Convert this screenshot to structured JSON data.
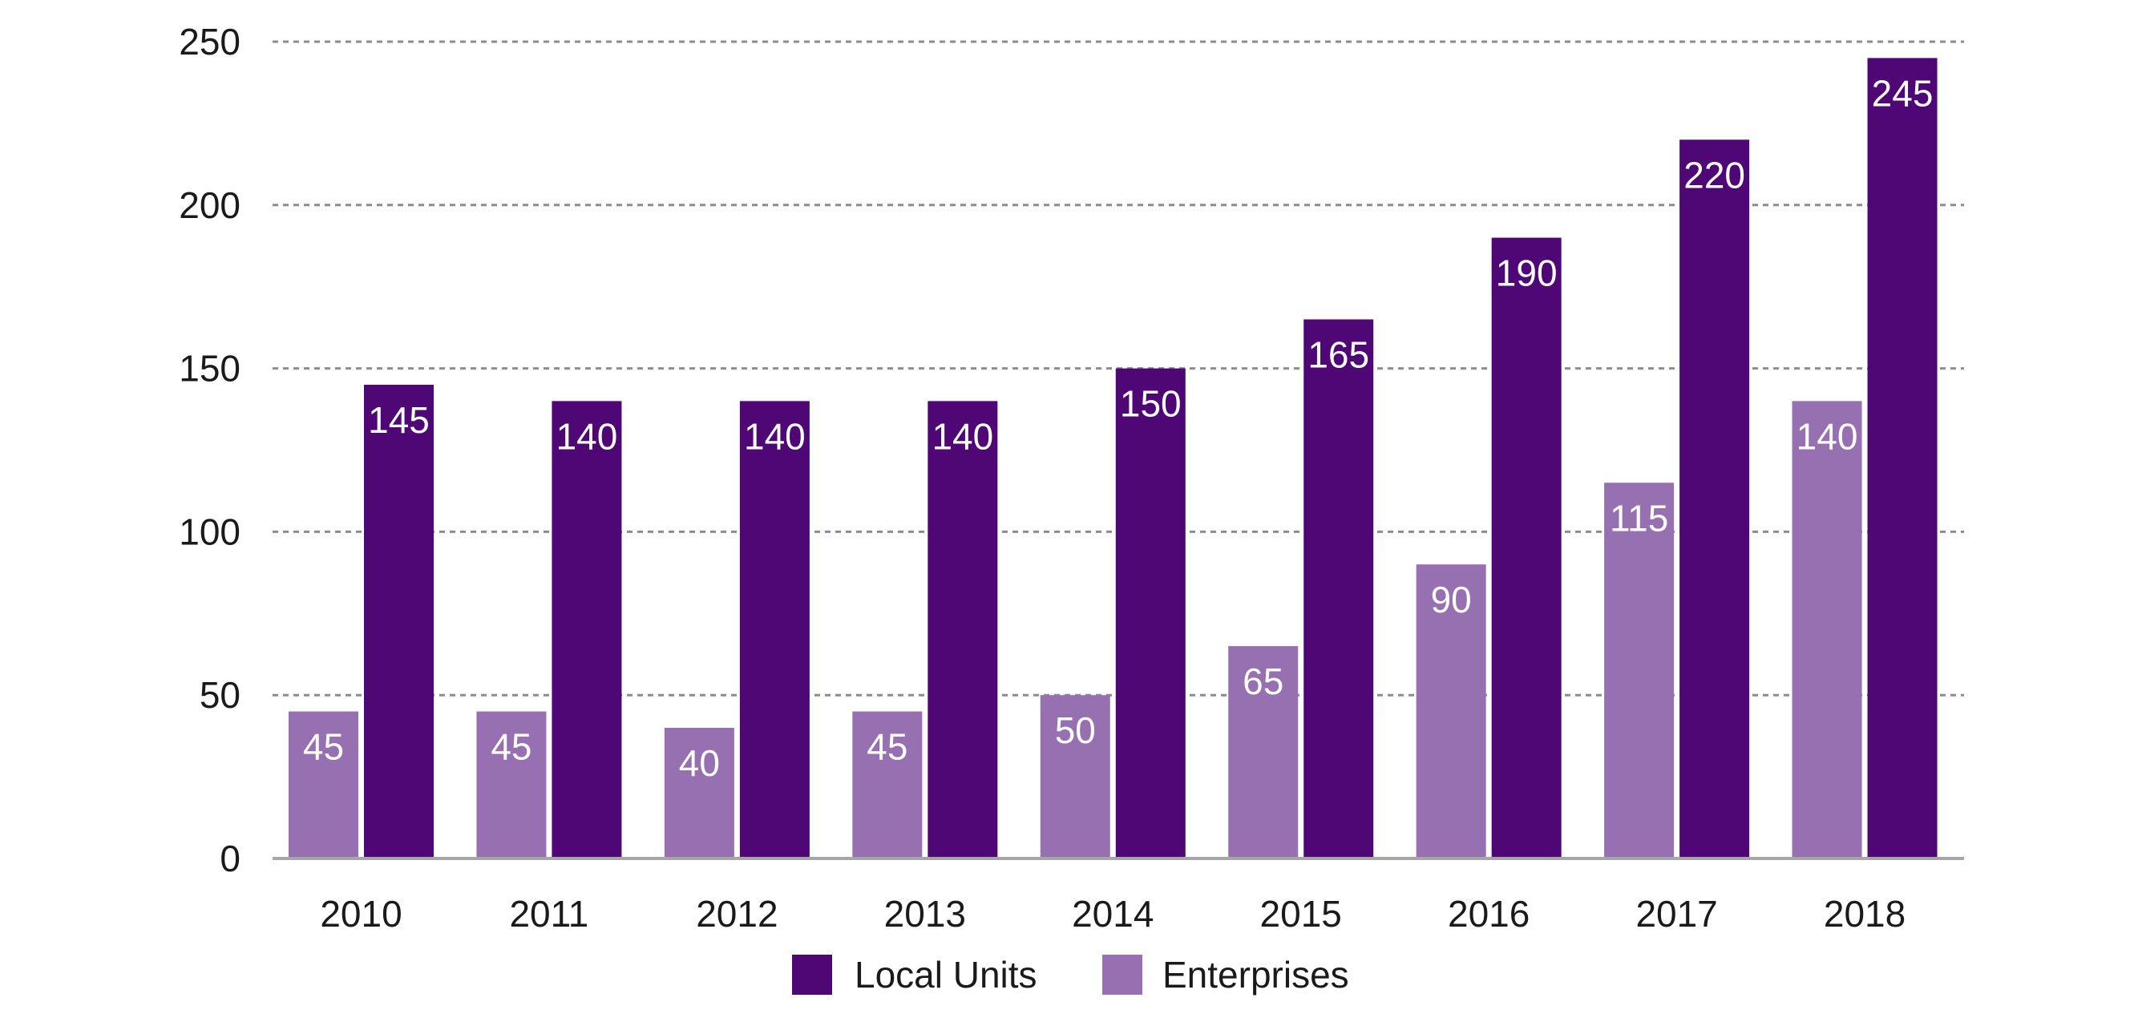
{
  "chart_data": {
    "type": "bar",
    "title": "",
    "xlabel": "",
    "ylabel": "",
    "categories": [
      "2010",
      "2011",
      "2012",
      "2013",
      "2014",
      "2015",
      "2016",
      "2017",
      "2018"
    ],
    "series": [
      {
        "name": "Enterprises",
        "color": "#9670b1",
        "values": [
          45,
          45,
          40,
          45,
          50,
          65,
          90,
          115,
          140
        ]
      },
      {
        "name": "Local Units",
        "color": "#4e0775",
        "values": [
          145,
          140,
          140,
          140,
          150,
          165,
          190,
          220,
          245
        ]
      }
    ],
    "ylim": [
      0,
      250
    ],
    "yticks": [
      "0",
      "50",
      "100",
      "150",
      "200",
      "250"
    ],
    "grid": true,
    "grid_style": "dashed",
    "data_labels": true,
    "legend": {
      "position": "bottom-center",
      "order": [
        "Local Units",
        "Enterprises"
      ]
    }
  }
}
